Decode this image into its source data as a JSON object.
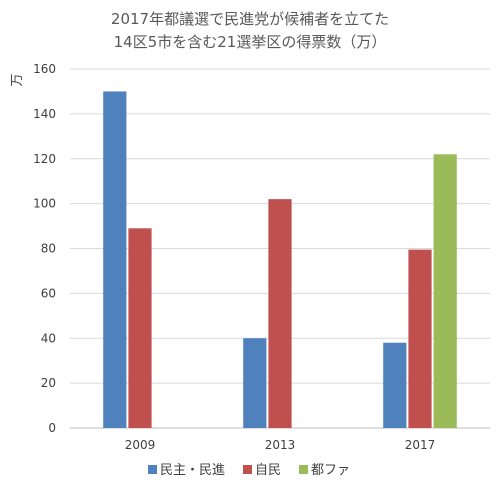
{
  "chart_data": {
    "type": "bar",
    "title_lines": [
      "2017年都議選で民進党が候補者を立てた",
      "14区5市を含む21選挙区の得票数（万）"
    ],
    "ylabel": "万",
    "xlabel": "",
    "ylim": [
      0,
      160
    ],
    "yticks": [
      0,
      20,
      40,
      60,
      80,
      100,
      120,
      140,
      160
    ],
    "grid": true,
    "legend_position": "bottom",
    "categories": [
      "2009",
      "2013",
      "2017"
    ],
    "series": [
      {
        "name": "民主・民進",
        "color": "#4f81bd",
        "values": [
          150,
          40,
          38
        ]
      },
      {
        "name": "自民",
        "color": "#c0504d",
        "values": [
          89,
          102,
          79.5
        ]
      },
      {
        "name": "都ファ",
        "color": "#9bbb59",
        "values": [
          null,
          null,
          122
        ]
      }
    ]
  }
}
